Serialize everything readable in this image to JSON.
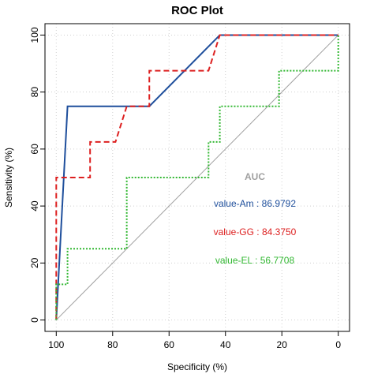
{
  "chart_data": {
    "type": "line",
    "title": "ROC Plot",
    "x_label": "Specificity (%)",
    "y_label": "Sensitivity (%)",
    "xlim": [
      104,
      -4
    ],
    "ylim": [
      -4,
      104
    ],
    "xticks": [
      100,
      80,
      60,
      40,
      20,
      0
    ],
    "yticks": [
      0,
      20,
      40,
      60,
      80,
      100
    ],
    "grid": true,
    "reference_color": "#a0a0a0",
    "legend_title": "AUC",
    "legend_title_color": "#a0a0a0",
    "series": [
      {
        "name": "value-Am : 86.9792",
        "color": "#1f4f9c",
        "dash": "none",
        "x": [
          100,
          96,
          67,
          42,
          0
        ],
        "values": [
          0,
          75,
          75,
          100,
          100
        ]
      },
      {
        "name": "value-GG : 84.3750",
        "color": "#dd2020",
        "dash": "7 4",
        "x": [
          100,
          100,
          88,
          88,
          79,
          75,
          67,
          67,
          46,
          42,
          0
        ],
        "values": [
          0,
          50,
          50,
          62.5,
          62.5,
          75,
          75,
          87.5,
          87.5,
          100,
          100
        ]
      },
      {
        "name": "value-EL : 56.7708",
        "color": "#33b833",
        "dash": "2 2",
        "x": [
          100,
          100,
          96,
          96,
          75,
          75,
          46,
          46,
          42,
          42,
          21,
          21,
          0,
          0
        ],
        "values": [
          0,
          12.5,
          12.5,
          25,
          25,
          50,
          50,
          62.5,
          62.5,
          75,
          75,
          87.5,
          87.5,
          100
        ]
      }
    ]
  }
}
